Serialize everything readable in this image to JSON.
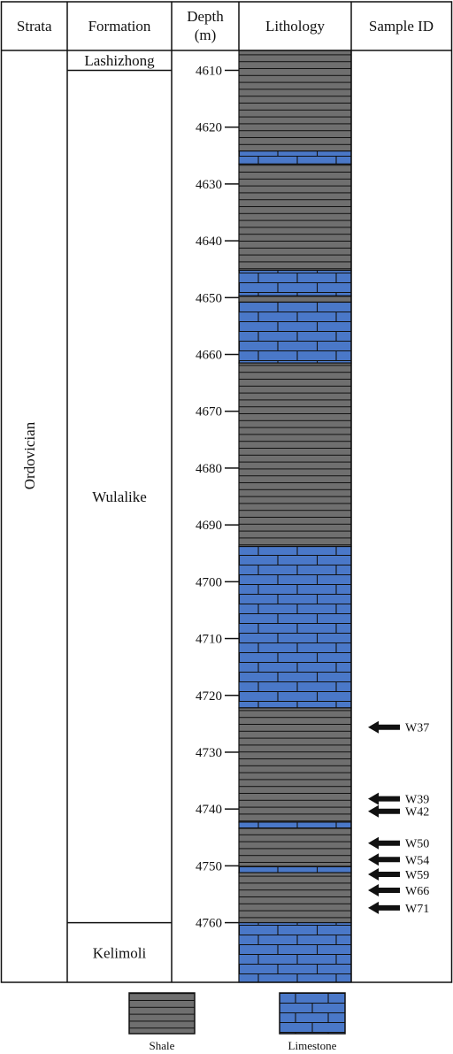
{
  "columns": {
    "strata": "Strata",
    "formation": "Formation",
    "depth_line1": "Depth",
    "depth_line2": "(m)",
    "lithology": "Lithology",
    "sample_id": "Sample ID"
  },
  "strata": "Ordovician",
  "formations": [
    {
      "name": "Lashizhong",
      "top": 4606.5,
      "bottom": 4610.0
    },
    {
      "name": "Wulalike",
      "top": 4610.0,
      "bottom": 4760.0
    },
    {
      "name": "Kelimoli",
      "top": 4760.0,
      "bottom": 4770.5
    }
  ],
  "depth_axis": {
    "min": 4606.5,
    "max": 4770.5,
    "ticks": [
      4610,
      4620,
      4630,
      4640,
      4650,
      4660,
      4670,
      4680,
      4690,
      4700,
      4710,
      4720,
      4730,
      4740,
      4750,
      4760
    ]
  },
  "lithology": [
    {
      "type": "shale",
      "top": 4606.5,
      "bottom": 4624.2
    },
    {
      "type": "limestone",
      "top": 4624.2,
      "bottom": 4626.5
    },
    {
      "type": "shale",
      "top": 4626.5,
      "bottom": 4645.2
    },
    {
      "type": "limestone",
      "top": 4645.2,
      "bottom": 4649.7
    },
    {
      "type": "shale",
      "top": 4649.7,
      "bottom": 4650.8
    },
    {
      "type": "limestone",
      "top": 4650.8,
      "bottom": 4661.5
    },
    {
      "type": "shale",
      "top": 4661.5,
      "bottom": 4693.8
    },
    {
      "type": "limestone",
      "top": 4693.8,
      "bottom": 4722.2
    },
    {
      "type": "shale",
      "top": 4722.2,
      "bottom": 4742.3
    },
    {
      "type": "limestone",
      "top": 4742.3,
      "bottom": 4743.4
    },
    {
      "type": "shale",
      "top": 4743.4,
      "bottom": 4750.1
    },
    {
      "type": "limestone",
      "top": 4750.1,
      "bottom": 4751.2
    },
    {
      "type": "shale",
      "top": 4751.2,
      "bottom": 4760.0
    },
    {
      "type": "limestone",
      "top": 4760.0,
      "bottom": 4770.5
    }
  ],
  "samples": [
    {
      "id": "W37",
      "depth": 4725.6
    },
    {
      "id": "W39",
      "depth": 4738.2
    },
    {
      "id": "W42",
      "depth": 4740.4
    },
    {
      "id": "W50",
      "depth": 4746.0
    },
    {
      "id": "W54",
      "depth": 4748.9
    },
    {
      "id": "W59",
      "depth": 4751.5
    },
    {
      "id": "W66",
      "depth": 4754.3
    },
    {
      "id": "W71",
      "depth": 4757.4
    }
  ],
  "legend": [
    {
      "type": "shale",
      "label": "Shale"
    },
    {
      "type": "limestone",
      "label": "Limestone"
    }
  ],
  "colors": {
    "shale_fill": "#6f6f6f",
    "limestone_fill": "#4a78c8",
    "pattern_line": "#111111",
    "frame": "#111111"
  }
}
